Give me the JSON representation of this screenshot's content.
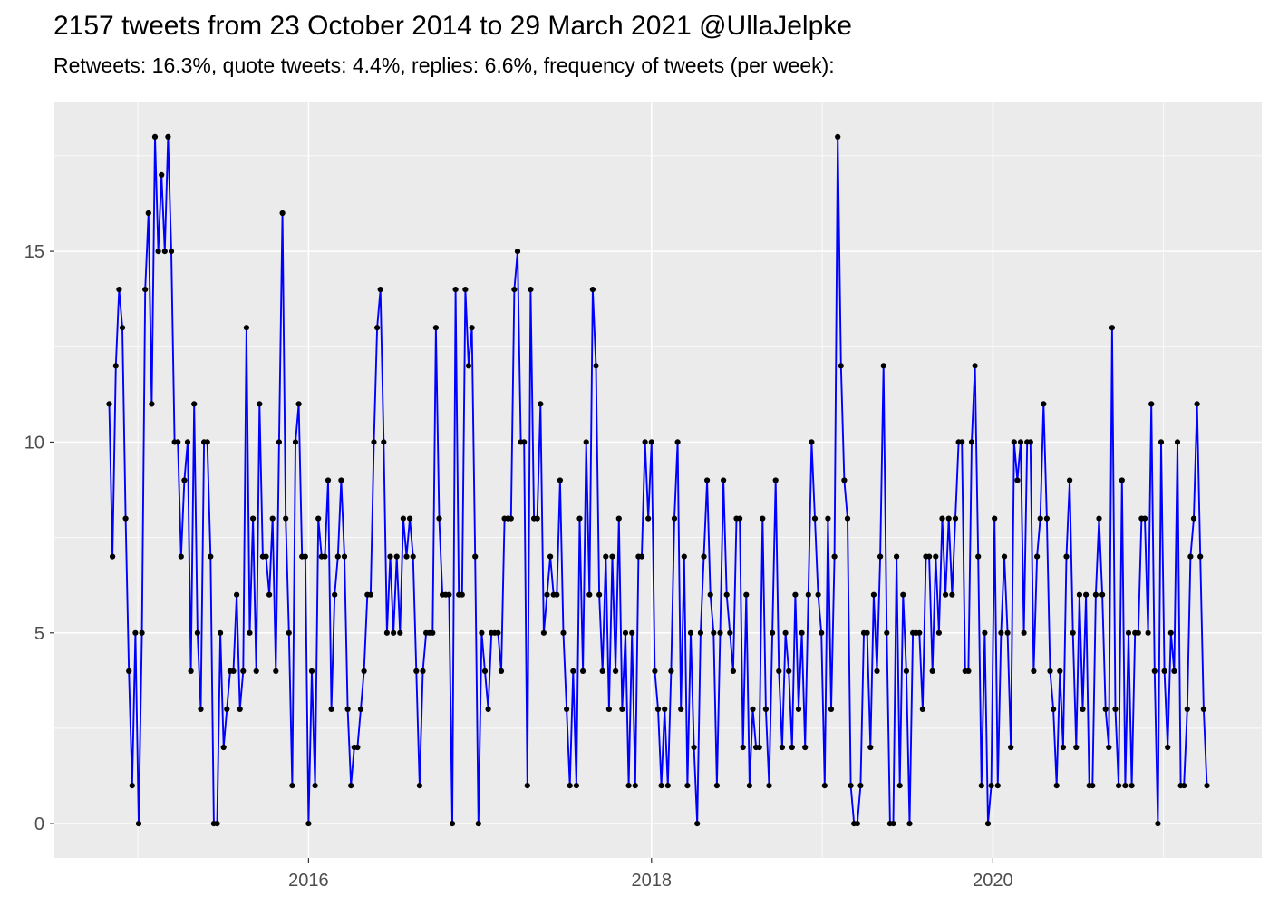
{
  "header": {
    "title": "2157 tweets from 23 October 2014 to 29 March 2021 @UllaJelpke",
    "subtitle": "Retweets: 16.3%, quote tweets: 4.4%, replies: 6.6%, frequency of tweets (per week):"
  },
  "chart_data": {
    "type": "line",
    "title": "2157 tweets from 23 October 2014 to 29 March 2021 @UllaJelpke",
    "subtitle": "Retweets: 16.3%, quote tweets: 4.4%, replies: 6.6%, frequency of tweets (per week):",
    "xlabel": "",
    "ylabel": "",
    "legend": "none",
    "grid": "on",
    "x_unit": "week",
    "x_start_label": "23 October 2014",
    "x_end_label": "29 March 2021",
    "x_tick_labels": [
      "2016",
      "2018",
      "2020"
    ],
    "x_tick_weeks": [
      61,
      166,
      270.5
    ],
    "x_minor_weeks": [
      8.75,
      113.5,
      218.25,
      322.75
    ],
    "y_tick_labels": [
      "0",
      "5",
      "10",
      "15"
    ],
    "y_ticks": [
      0,
      5,
      10,
      15
    ],
    "y_minor": [
      2.5,
      7.5,
      12.5,
      17.5
    ],
    "ylim": [
      -0.9,
      18.9
    ],
    "xlim_weeks": [
      -16.8,
      352.8
    ],
    "panel_bg": "#EBEBEB",
    "grid_major_color": "#FFFFFF",
    "grid_minor_color": "#FFFFFF",
    "line_color": "#0000FF",
    "marker_color": "#000000",
    "axis_text_color": "#4D4D4D",
    "tick_mark_color": "#333333",
    "values": [
      11,
      7,
      12,
      14,
      13,
      8,
      4,
      1,
      5,
      0,
      5,
      14,
      16,
      11,
      18,
      15,
      17,
      15,
      18,
      15,
      10,
      10,
      7,
      9,
      10,
      4,
      11,
      5,
      3,
      10,
      10,
      7,
      0,
      0,
      5,
      2,
      3,
      4,
      4,
      6,
      3,
      4,
      13,
      5,
      8,
      4,
      11,
      7,
      7,
      6,
      8,
      4,
      10,
      16,
      8,
      5,
      1,
      10,
      11,
      7,
      7,
      0,
      4,
      1,
      8,
      7,
      7,
      9,
      3,
      6,
      7,
      9,
      7,
      3,
      1,
      2,
      2,
      3,
      4,
      6,
      6,
      10,
      13,
      14,
      10,
      5,
      7,
      5,
      7,
      5,
      8,
      7,
      8,
      7,
      4,
      1,
      4,
      5,
      5,
      5,
      13,
      8,
      6,
      6,
      6,
      0,
      14,
      6,
      6,
      14,
      12,
      13,
      7,
      0,
      5,
      4,
      3,
      5,
      5,
      5,
      4,
      8,
      8,
      8,
      14,
      15,
      10,
      10,
      1,
      14,
      8,
      8,
      11,
      5,
      6,
      7,
      6,
      6,
      9,
      5,
      3,
      1,
      4,
      1,
      8,
      4,
      10,
      6,
      14,
      12,
      6,
      4,
      7,
      3,
      7,
      4,
      8,
      3,
      5,
      1,
      5,
      1,
      7,
      7,
      10,
      8,
      10,
      4,
      3,
      1,
      3,
      1,
      4,
      8,
      10,
      3,
      7,
      1,
      5,
      2,
      0,
      5,
      7,
      9,
      6,
      5,
      1,
      5,
      9,
      6,
      5,
      4,
      8,
      8,
      2,
      6,
      1,
      3,
      2,
      2,
      8,
      3,
      1,
      5,
      9,
      4,
      2,
      5,
      4,
      2,
      6,
      3,
      5,
      2,
      6,
      10,
      8,
      6,
      5,
      1,
      8,
      3,
      7,
      18,
      12,
      9,
      8,
      1,
      0,
      0,
      1,
      5,
      5,
      2,
      6,
      4,
      7,
      12,
      5,
      0,
      0,
      7,
      1,
      6,
      4,
      0,
      5,
      5,
      5,
      3,
      7,
      7,
      4,
      7,
      5,
      8,
      6,
      8,
      6,
      8,
      10,
      10,
      4,
      4,
      10,
      12,
      7,
      1,
      5,
      0,
      1,
      8,
      1,
      5,
      7,
      5,
      2,
      10,
      9,
      10,
      5,
      10,
      10,
      4,
      7,
      8,
      11,
      8,
      4,
      3,
      1,
      4,
      2,
      7,
      9,
      5,
      2,
      6,
      3,
      6,
      1,
      1,
      6,
      8,
      6,
      3,
      2,
      13,
      3,
      1,
      9,
      1,
      5,
      1,
      5,
      5,
      8,
      8,
      5,
      11,
      4,
      0,
      10,
      4,
      2,
      5,
      4,
      10,
      1,
      1,
      3,
      7,
      8,
      11,
      7,
      3,
      1
    ]
  }
}
